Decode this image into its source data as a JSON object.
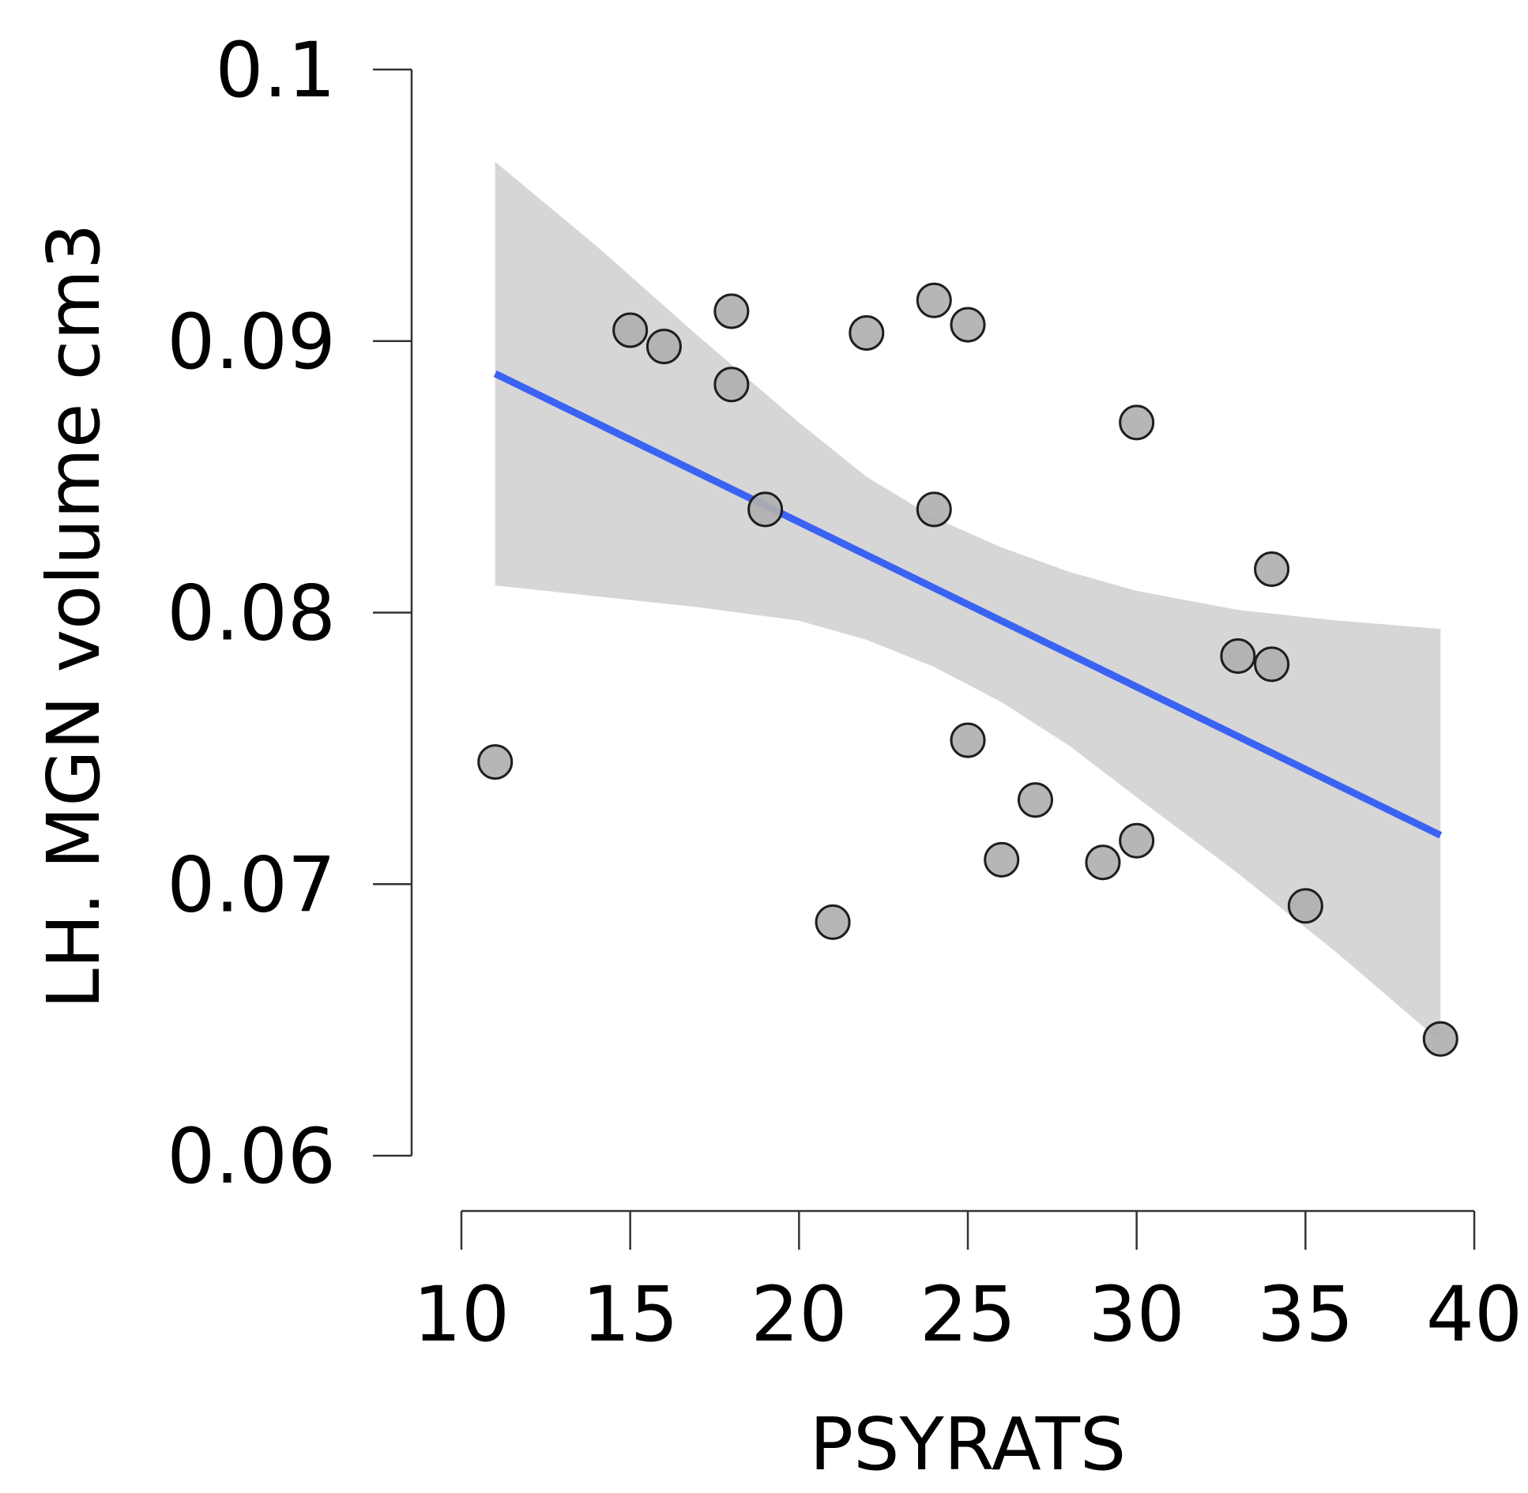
{
  "chart_data": {
    "type": "scatter",
    "xlabel": "PSYRATS",
    "ylabel": "LH. MGN volume cm3",
    "xlim": [
      10,
      40
    ],
    "ylim": [
      0.06,
      0.1
    ],
    "x_ticks": [
      10,
      15,
      20,
      25,
      30,
      35,
      40
    ],
    "x_tick_labels": [
      "10",
      "15",
      "20",
      "25",
      "30",
      "35",
      "40"
    ],
    "y_ticks": [
      0.06,
      0.07,
      0.08,
      0.09,
      0.1
    ],
    "y_tick_labels": [
      "0.06",
      "0.07",
      "0.08",
      "0.09",
      "0.1"
    ],
    "grid": false,
    "points": [
      {
        "x": 11,
        "y": 0.0745
      },
      {
        "x": 15,
        "y": 0.0904
      },
      {
        "x": 16,
        "y": 0.0898
      },
      {
        "x": 18,
        "y": 0.0911
      },
      {
        "x": 18,
        "y": 0.0884
      },
      {
        "x": 19,
        "y": 0.0838
      },
      {
        "x": 21,
        "y": 0.0686
      },
      {
        "x": 22,
        "y": 0.0903
      },
      {
        "x": 24,
        "y": 0.0915
      },
      {
        "x": 24,
        "y": 0.0838
      },
      {
        "x": 25,
        "y": 0.0906
      },
      {
        "x": 25,
        "y": 0.0753
      },
      {
        "x": 26,
        "y": 0.0709
      },
      {
        "x": 27,
        "y": 0.0731
      },
      {
        "x": 29,
        "y": 0.0708
      },
      {
        "x": 30,
        "y": 0.087
      },
      {
        "x": 30,
        "y": 0.0716
      },
      {
        "x": 33,
        "y": 0.0784
      },
      {
        "x": 34,
        "y": 0.0816
      },
      {
        "x": 34,
        "y": 0.0781
      },
      {
        "x": 35,
        "y": 0.0692
      },
      {
        "x": 39,
        "y": 0.0643
      }
    ],
    "fit_line": {
      "x": [
        11,
        39
      ],
      "y": [
        0.0888,
        0.0718
      ]
    },
    "confidence_band": {
      "x": [
        11,
        14,
        17,
        20,
        22,
        24,
        26,
        28,
        30,
        33,
        36,
        39
      ],
      "upper": [
        0.0966,
        0.0935,
        0.0902,
        0.087,
        0.085,
        0.0835,
        0.0824,
        0.0815,
        0.0808,
        0.0801,
        0.0797,
        0.0794
      ],
      "lower": [
        0.081,
        0.0806,
        0.0802,
        0.0797,
        0.079,
        0.078,
        0.0767,
        0.0751,
        0.0732,
        0.0704,
        0.0674,
        0.0642
      ]
    },
    "colors": {
      "fit_line": "#3b63f3",
      "band": "#d6d6d6",
      "point_fill": "#b0b0b0",
      "point_stroke": "#1e1e1e",
      "axis": "#333333",
      "text": "#000000"
    }
  }
}
